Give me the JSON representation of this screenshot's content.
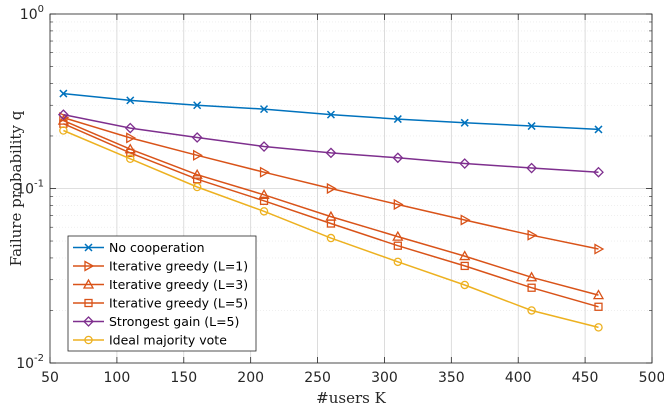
{
  "chart_data": {
    "type": "line",
    "xscale": "linear",
    "yscale": "log",
    "title": "",
    "xlabel": "#users K",
    "ylabel": "Failure probability q",
    "xlim": [
      50,
      500
    ],
    "ylim": [
      0.01,
      1
    ],
    "grid": true,
    "legend_position": "bottom-left",
    "x_ticks": [
      50,
      100,
      150,
      200,
      250,
      300,
      350,
      400,
      450,
      500
    ],
    "y_ticks": [
      {
        "value": 0.01,
        "base": "10",
        "exp": "-2"
      },
      {
        "value": 0.1,
        "base": "10",
        "exp": "-1"
      },
      {
        "value": 1,
        "base": "10",
        "exp": "0"
      }
    ],
    "x": [
      60,
      110,
      160,
      210,
      260,
      310,
      360,
      410,
      460
    ],
    "series": [
      {
        "name": "No cooperation",
        "color": "#0072BD",
        "marker": "x",
        "values": [
          0.35,
          0.32,
          0.3,
          0.285,
          0.265,
          0.25,
          0.238,
          0.228,
          0.218
        ]
      },
      {
        "name": "Iterative greedy (L=1)",
        "color": "#D95319",
        "marker": "triangle-right",
        "values": [
          0.255,
          0.195,
          0.155,
          0.124,
          0.1,
          0.081,
          0.066,
          0.054,
          0.045
        ]
      },
      {
        "name": "Iterative greedy (L=3)",
        "color": "#D95319",
        "marker": "triangle-up",
        "values": [
          0.245,
          0.168,
          0.12,
          0.092,
          0.069,
          0.053,
          0.041,
          0.031,
          0.0245
        ]
      },
      {
        "name": "Iterative greedy (L=5)",
        "color": "#D95319",
        "marker": "square",
        "values": [
          0.235,
          0.16,
          0.113,
          0.085,
          0.063,
          0.047,
          0.036,
          0.027,
          0.021
        ]
      },
      {
        "name": "Strongest gain (L=5)",
        "color": "#7E2F8E",
        "marker": "diamond",
        "values": [
          0.265,
          0.222,
          0.196,
          0.174,
          0.16,
          0.15,
          0.139,
          0.131,
          0.124
        ]
      },
      {
        "name": "Ideal majority vote",
        "color": "#EDB120",
        "marker": "circle",
        "values": [
          0.215,
          0.148,
          0.102,
          0.074,
          0.052,
          0.038,
          0.028,
          0.02,
          0.016
        ]
      }
    ]
  }
}
